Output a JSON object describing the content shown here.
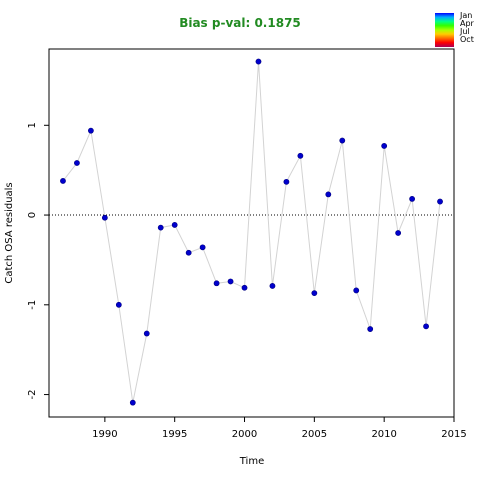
{
  "chart_data": {
    "type": "scatter",
    "title": "Bias p-val: 0.1875",
    "xlabel": "Time",
    "ylabel": "Catch OSA residuals",
    "xlim": [
      1986,
      2015
    ],
    "ylim": [
      -2.25,
      1.85
    ],
    "xticks": [
      1990,
      1995,
      2000,
      2005,
      2010,
      2015
    ],
    "yticks": [
      -2,
      -1,
      0,
      1
    ],
    "reference_line": 0,
    "legend": {
      "position": "top-right",
      "labels": [
        "Jan",
        "Apr",
        "Jul",
        "Oct"
      ]
    },
    "series": [
      {
        "x": [
          1987,
          1988,
          1989,
          1990,
          1991,
          1992,
          1993,
          1994,
          1995,
          1996,
          1997,
          1998,
          1999,
          2000,
          2001,
          2002,
          2003,
          2004,
          2005,
          2006,
          2007,
          2008,
          2009,
          2010,
          2011,
          2012,
          2013,
          2014
        ],
        "y": [
          0.38,
          0.58,
          0.94,
          -0.03,
          -1.0,
          -2.09,
          -1.32,
          -0.14,
          -0.11,
          -0.42,
          -0.36,
          -0.76,
          -0.74,
          -0.81,
          1.71,
          -0.79,
          0.37,
          0.66,
          -0.87,
          0.23,
          0.83,
          -0.84,
          -1.27,
          0.77,
          -0.2,
          0.18,
          -1.24,
          0.15
        ]
      }
    ],
    "colors": {
      "title": "#228B22",
      "point": "#0000CD",
      "line": "#D3D3D3"
    }
  }
}
